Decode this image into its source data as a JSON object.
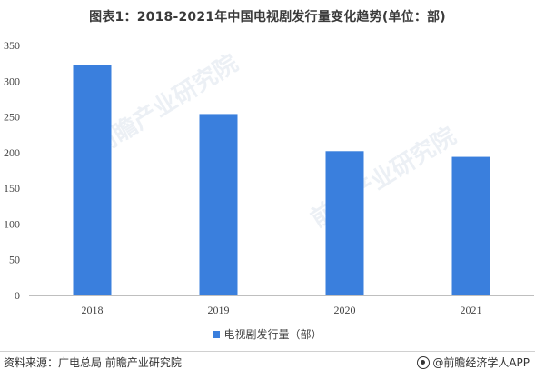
{
  "title": "图表1：2018-2021年中国电视剧发行量变化趋势(单位：部)",
  "source": "资料来源：广电总局 前瞻产业研究院",
  "brand": "@前瞻经济学人APP",
  "watermark": "前瞻产业研究院",
  "colors": {
    "bar": "#3a7fdd",
    "axis": "#bfbfbf"
  },
  "chart_data": {
    "type": "bar",
    "title": "图表1：2018-2021年中国电视剧发行量变化趋势(单位：部)",
    "categories": [
      "2018",
      "2019",
      "2020",
      "2021"
    ],
    "series": [
      {
        "name": "电视剧发行量（部）",
        "values": [
          323,
          254,
          202,
          194
        ]
      }
    ],
    "xlabel": "",
    "ylabel": "",
    "ylim": [
      0,
      350
    ],
    "yticks": [
      0,
      50,
      100,
      150,
      200,
      250,
      300,
      350
    ],
    "grid": false,
    "legend": "bottom"
  }
}
